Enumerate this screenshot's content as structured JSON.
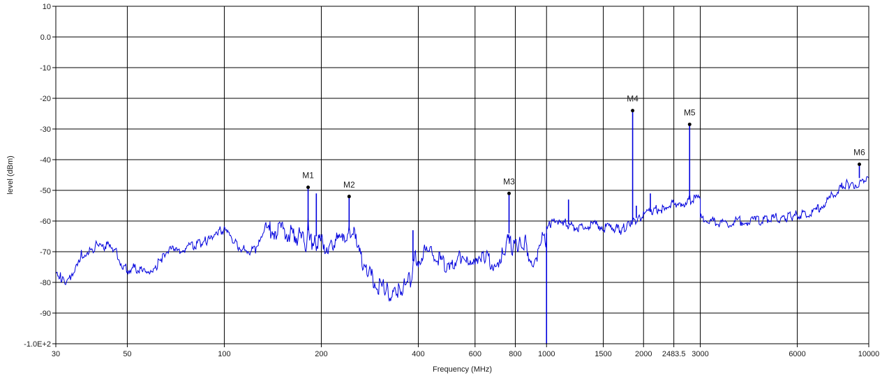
{
  "chart_data": {
    "type": "line",
    "title": "",
    "xlabel": "Frequency (MHz)",
    "ylabel": "level (dBm)",
    "x_scale": "log",
    "xlim": [
      30,
      10000
    ],
    "ylim": [
      -100,
      10
    ],
    "grid": true,
    "legend": "none",
    "x_ticks": [
      {
        "value": 30,
        "label": "30"
      },
      {
        "value": 50,
        "label": "50"
      },
      {
        "value": 100,
        "label": "100"
      },
      {
        "value": 200,
        "label": "200"
      },
      {
        "value": 400,
        "label": "400"
      },
      {
        "value": 600,
        "label": "600"
      },
      {
        "value": 800,
        "label": "800"
      },
      {
        "value": 1000,
        "label": "1000"
      },
      {
        "value": 1500,
        "label": "1500"
      },
      {
        "value": 2000,
        "label": "2000"
      },
      {
        "value": 2483.5,
        "label": "2483.5"
      },
      {
        "value": 3000,
        "label": "3000"
      },
      {
        "value": 6000,
        "label": "6000"
      },
      {
        "value": 10000,
        "label": "10000"
      }
    ],
    "y_ticks": [
      {
        "value": 10,
        "label": "10"
      },
      {
        "value": 0,
        "label": "0.0"
      },
      {
        "value": -10,
        "label": "-10"
      },
      {
        "value": -20,
        "label": "-20"
      },
      {
        "value": -30,
        "label": "-30"
      },
      {
        "value": -40,
        "label": "-40"
      },
      {
        "value": -50,
        "label": "-50"
      },
      {
        "value": -60,
        "label": "-60"
      },
      {
        "value": -70,
        "label": "-70"
      },
      {
        "value": -80,
        "label": "-80"
      },
      {
        "value": -90,
        "label": "-90"
      },
      {
        "value": -100,
        "label": "-1.0E+2"
      }
    ],
    "series": [
      {
        "color": "#0000dd",
        "x": [
          30,
          31,
          32,
          33,
          34,
          35,
          36,
          38,
          40,
          42,
          44,
          46,
          48,
          50,
          52,
          55,
          58,
          60,
          62,
          65,
          68,
          70,
          75,
          80,
          85,
          90,
          95,
          100,
          105,
          110,
          115,
          120,
          125,
          130,
          140,
          150,
          160,
          170,
          175,
          180,
          182,
          185,
          190,
          195,
          200,
          210,
          220,
          230,
          240,
          245,
          250,
          255,
          260,
          270,
          280,
          290,
          300,
          310,
          320,
          340,
          360,
          380,
          390,
          400,
          420,
          450,
          480,
          500,
          520,
          550,
          580,
          600,
          620,
          650,
          680,
          700,
          720,
          740,
          750,
          760,
          770,
          780,
          800,
          830,
          860,
          880,
          900,
          920,
          940,
          960,
          980,
          1000,
          1000,
          1020,
          1050,
          1080,
          1100,
          1120,
          1150,
          1200,
          1300,
          1400,
          1500,
          1600,
          1700,
          1800,
          1850,
          1900,
          2000,
          2100,
          2200,
          2300,
          2400,
          2500,
          2600,
          2700,
          2800,
          2900,
          3000,
          3000,
          3200,
          3500,
          4000,
          4500,
          5000,
          5500,
          6000,
          6500,
          7000,
          7500,
          8000,
          8500,
          9000,
          9500,
          10000
        ],
        "y": [
          -76,
          -78,
          -80,
          -79,
          -76,
          -73,
          -71,
          -70,
          -68,
          -69,
          -67,
          -70,
          -74,
          -76,
          -75,
          -76,
          -78,
          -77,
          -74,
          -71,
          -69,
          -70,
          -69,
          -68,
          -67,
          -66,
          -63,
          -63,
          -66,
          -68,
          -69,
          -70,
          -69,
          -64,
          -63,
          -63,
          -64,
          -65,
          -66,
          -67,
          -62,
          -65,
          -68,
          -67,
          -67,
          -68,
          -67,
          -66,
          -68,
          -62,
          -64,
          -66,
          -70,
          -74,
          -77,
          -79,
          -81,
          -82,
          -83,
          -84,
          -82,
          -79,
          -72,
          -73,
          -70,
          -71,
          -74,
          -76,
          -73,
          -71,
          -72,
          -72,
          -71,
          -72,
          -74,
          -73,
          -72,
          -70,
          -68,
          -63,
          -66,
          -69,
          -68,
          -67,
          -67,
          -71,
          -76,
          -73,
          -70,
          -66,
          -66,
          -66,
          -61,
          -60,
          -59,
          -60,
          -61,
          -60,
          -61,
          -62,
          -62,
          -61,
          -62,
          -62,
          -63,
          -61,
          -60,
          -60,
          -58,
          -57,
          -56,
          -56,
          -55,
          -54,
          -54,
          -54,
          -53,
          -53,
          -53,
          -59,
          -60,
          -61,
          -60,
          -60,
          -59,
          -59,
          -58,
          -58,
          -56,
          -53,
          -50,
          -48,
          -48,
          -47,
          -46
        ]
      }
    ],
    "spikes": [
      {
        "x": 182,
        "from": -63,
        "to": -49
      },
      {
        "x": 193,
        "from": -65,
        "to": -51
      },
      {
        "x": 244,
        "from": -63,
        "to": -52
      },
      {
        "x": 385,
        "from": -73,
        "to": -63
      },
      {
        "x": 765,
        "from": -64,
        "to": -51
      },
      {
        "x": 1000,
        "from": -64,
        "to": -100
      },
      {
        "x": 1170,
        "from": -61,
        "to": -53
      },
      {
        "x": 1850,
        "from": -60,
        "to": -24
      },
      {
        "x": 1900,
        "from": -59,
        "to": -55
      },
      {
        "x": 2100,
        "from": -57,
        "to": -51
      },
      {
        "x": 2780,
        "from": -53,
        "to": -28.5
      },
      {
        "x": 9350,
        "from": -46,
        "to": -41.5
      }
    ],
    "markers": [
      {
        "label": "M1",
        "x": 182,
        "y": -49
      },
      {
        "label": "M2",
        "x": 244,
        "y": -52
      },
      {
        "label": "M3",
        "x": 765,
        "y": -51
      },
      {
        "label": "M4",
        "x": 1850,
        "y": -24
      },
      {
        "label": "M5",
        "x": 2780,
        "y": -28.5
      },
      {
        "label": "M6",
        "x": 9350,
        "y": -41.5
      }
    ]
  }
}
